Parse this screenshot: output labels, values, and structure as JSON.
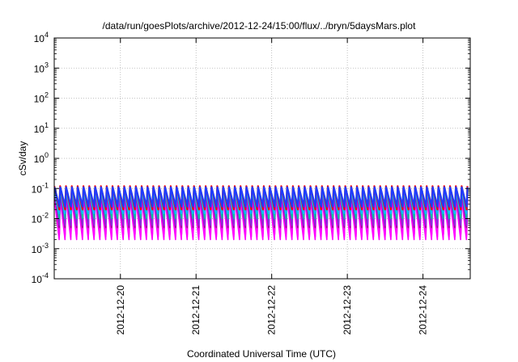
{
  "chart_data": {
    "type": "line",
    "title": "/data/run/goesPlots/archive/2012-12-24/15:00/flux/../bryn/5daysMars.plot",
    "xlabel": "Coordinated Universal Time (UTC)",
    "ylabel": "cSv/day",
    "y_scale": "log",
    "ylim": [
      0.0001,
      10000
    ],
    "y_ticks": [
      {
        "value": 0.0001,
        "base": "10",
        "exp": "-4"
      },
      {
        "value": 0.001,
        "base": "10",
        "exp": "-3"
      },
      {
        "value": 0.01,
        "base": "10",
        "exp": "-2"
      },
      {
        "value": 0.1,
        "base": "10",
        "exp": "-1"
      },
      {
        "value": 1,
        "base": "10",
        "exp": "0"
      },
      {
        "value": 10,
        "base": "10",
        "exp": "1"
      },
      {
        "value": 100,
        "base": "10",
        "exp": "2"
      },
      {
        "value": 1000,
        "base": "10",
        "exp": "3"
      },
      {
        "value": 10000,
        "base": "10",
        "exp": "4"
      }
    ],
    "xlim": [
      "2012-12-19T03:00",
      "2012-12-24T15:00"
    ],
    "x_ticks": [
      "2012-12-20",
      "2012-12-21",
      "2012-12-22",
      "2012-12-23",
      "2012-12-24"
    ],
    "grid": true,
    "legend": "none",
    "series_pattern": {
      "description_values_in_units": "sawtooth, about 13 cycles per day",
      "cycles_per_day": 13,
      "series": [
        {
          "color": "#ff00ff",
          "peak": 0.05,
          "trough": 0.002
        },
        {
          "color": "#ff00ff",
          "peak": 0.055,
          "trough": 0.0025
        },
        {
          "color": "#ff00ff",
          "peak": 0.06,
          "trough": 0.003
        },
        {
          "color": "#ff00ff",
          "peak": 0.065,
          "trough": 0.0035
        },
        {
          "color": "#ff00ff",
          "peak": 0.07,
          "trough": 0.004
        },
        {
          "color": "#ff00ff",
          "peak": 0.075,
          "trough": 0.005
        },
        {
          "color": "#9a0f8f",
          "peak": 0.08,
          "trough": 0.005
        },
        {
          "color": "#8a2be2",
          "peak": 0.085,
          "trough": 0.006
        },
        {
          "color": "#00cc99",
          "peak": 0.09,
          "trough": 0.01
        },
        {
          "color": "#00bfff",
          "peak": 0.1,
          "trough": 0.015
        },
        {
          "color": "#ff0000",
          "peak": 0.12,
          "trough": 0.02
        },
        {
          "color": "#1e3cff",
          "peak": 0.11,
          "trough": 0.025
        }
      ]
    }
  }
}
